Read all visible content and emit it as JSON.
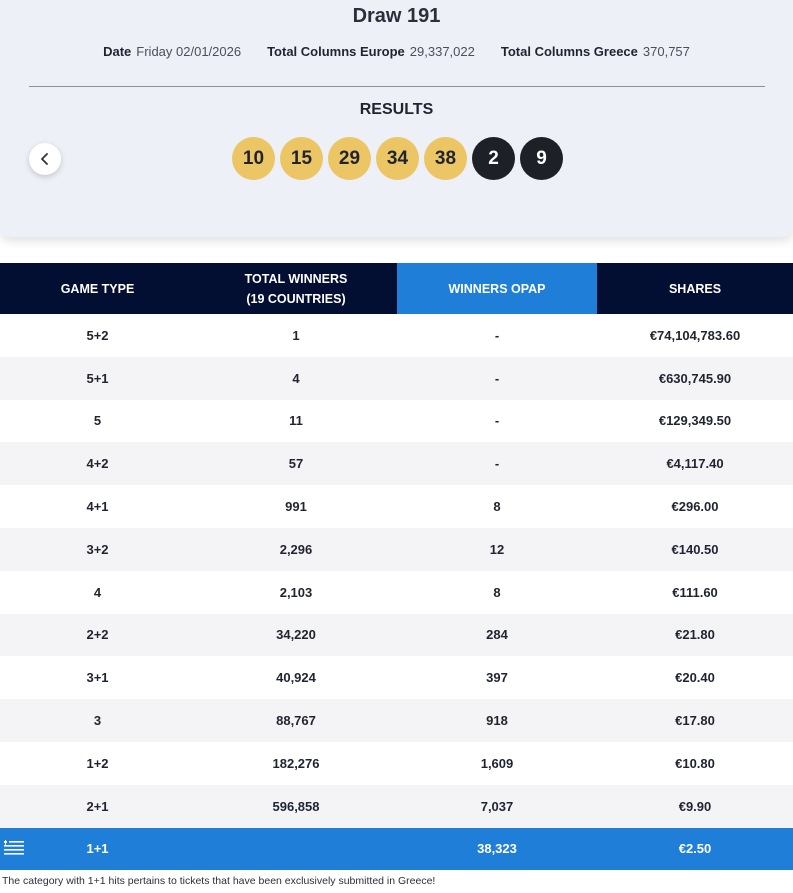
{
  "header": {
    "title": "Draw 191",
    "date_label": "Date",
    "date_value": "Friday 02/01/2026",
    "cols_europe_label": "Total Columns Europe",
    "cols_europe_value": "29,337,022",
    "cols_greece_label": "Total Columns Greece",
    "cols_greece_value": "370,757",
    "results_label": "RESULTS",
    "prev_icon": "chevron-left-icon"
  },
  "balls": {
    "main": [
      "10",
      "15",
      "29",
      "34",
      "38"
    ],
    "stars": [
      "2",
      "9"
    ],
    "main_color": "#ecc564",
    "star_color": "#1d2027"
  },
  "table": {
    "headers": {
      "game_type": "GAME TYPE",
      "total_winners_line1": "TOTAL WINNERS",
      "total_winners_line2": "(19 COUNTRIES)",
      "winners_opap": "WINNERS OPAP",
      "shares": "SHARES"
    },
    "rows": [
      [
        "5+2",
        "1",
        "-",
        "€74,104,783.60"
      ],
      [
        "5+1",
        "4",
        "-",
        "€630,745.90"
      ],
      [
        "5",
        "11",
        "-",
        "€129,349.50"
      ],
      [
        "4+2",
        "57",
        "-",
        "€4,117.40"
      ],
      [
        "4+1",
        "991",
        "8",
        "€296.00"
      ],
      [
        "3+2",
        "2,296",
        "12",
        "€140.50"
      ],
      [
        "4",
        "2,103",
        "8",
        "€111.60"
      ],
      [
        "2+2",
        "34,220",
        "284",
        "€21.80"
      ],
      [
        "3+1",
        "40,924",
        "397",
        "€20.40"
      ],
      [
        "3",
        "88,767",
        "918",
        "€17.80"
      ],
      [
        "1+2",
        "182,276",
        "1,609",
        "€10.80"
      ],
      [
        "2+1",
        "596,858",
        "7,037",
        "€9.90"
      ]
    ],
    "greece_row": [
      "1+1",
      "",
      "38,323",
      "€2.50"
    ],
    "header_color": "#030e33",
    "accent_color": "#1f7fd8"
  },
  "footnote": "The category with 1+1 hits pertains to tickets that have been exclusively submitted in Greece!"
}
